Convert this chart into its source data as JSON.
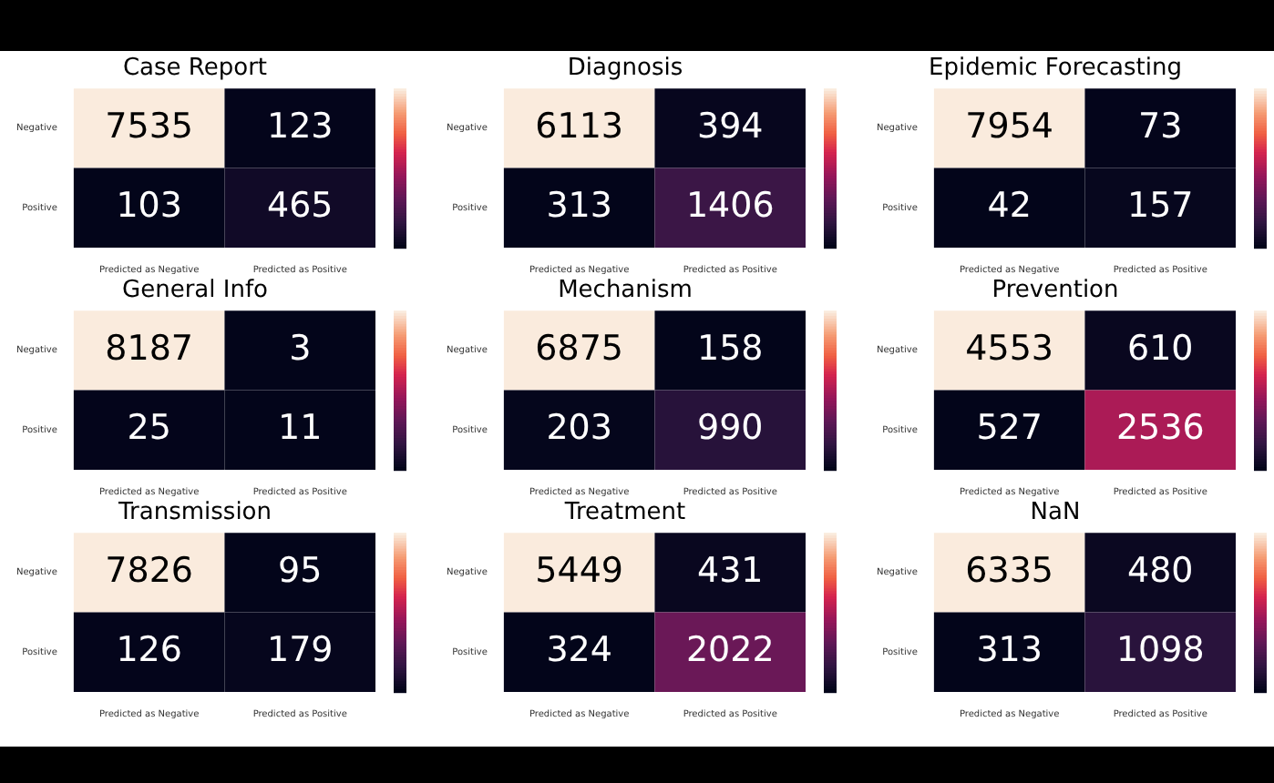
{
  "chart_data": [
    {
      "type": "heatmap",
      "title": "Case Report",
      "categories": [
        "Predicted as Negative",
        "Predicted as Positive"
      ],
      "y_categories": [
        "Negative",
        "Positive"
      ],
      "cells": [
        [
          7535,
          123
        ],
        [
          103,
          465
        ]
      ],
      "data_labels": true
    },
    {
      "type": "heatmap",
      "title": "Diagnosis",
      "categories": [
        "Predicted as Negative",
        "Predicted as Positive"
      ],
      "y_categories": [
        "Negative",
        "Positive"
      ],
      "cells": [
        [
          6113,
          394
        ],
        [
          313,
          1406
        ]
      ],
      "data_labels": true
    },
    {
      "type": "heatmap",
      "title": "Epidemic Forecasting",
      "categories": [
        "Predicted as Negative",
        "Predicted as Positive"
      ],
      "y_categories": [
        "Negative",
        "Positive"
      ],
      "cells": [
        [
          7954,
          73
        ],
        [
          42,
          157
        ]
      ],
      "data_labels": true
    },
    {
      "type": "heatmap",
      "title": "General Info",
      "categories": [
        "Predicted as Negative",
        "Predicted as Positive"
      ],
      "y_categories": [
        "Negative",
        "Positive"
      ],
      "cells": [
        [
          8187,
          3
        ],
        [
          25,
          11
        ]
      ],
      "data_labels": true
    },
    {
      "type": "heatmap",
      "title": "Mechanism",
      "categories": [
        "Predicted as Negative",
        "Predicted as Positive"
      ],
      "y_categories": [
        "Negative",
        "Positive"
      ],
      "cells": [
        [
          6875,
          158
        ],
        [
          203,
          990
        ]
      ],
      "data_labels": true
    },
    {
      "type": "heatmap",
      "title": "Prevention",
      "categories": [
        "Predicted as Negative",
        "Predicted as Positive"
      ],
      "y_categories": [
        "Negative",
        "Positive"
      ],
      "cells": [
        [
          4553,
          610
        ],
        [
          527,
          2536
        ]
      ],
      "data_labels": true
    },
    {
      "type": "heatmap",
      "title": "Transmission",
      "categories": [
        "Predicted as Negative",
        "Predicted as Positive"
      ],
      "y_categories": [
        "Negative",
        "Positive"
      ],
      "cells": [
        [
          7826,
          95
        ],
        [
          126,
          179
        ]
      ],
      "data_labels": true
    },
    {
      "type": "heatmap",
      "title": "Treatment",
      "categories": [
        "Predicted as Negative",
        "Predicted as Positive"
      ],
      "y_categories": [
        "Negative",
        "Positive"
      ],
      "cells": [
        [
          5449,
          431
        ],
        [
          324,
          2022
        ]
      ],
      "data_labels": true
    },
    {
      "type": "heatmap",
      "title": "NaN",
      "categories": [
        "Predicted as Negative",
        "Predicted as Positive"
      ],
      "y_categories": [
        "Negative",
        "Positive"
      ],
      "cells": [
        [
          6335,
          480
        ],
        [
          313,
          1098
        ]
      ],
      "data_labels": true
    }
  ]
}
